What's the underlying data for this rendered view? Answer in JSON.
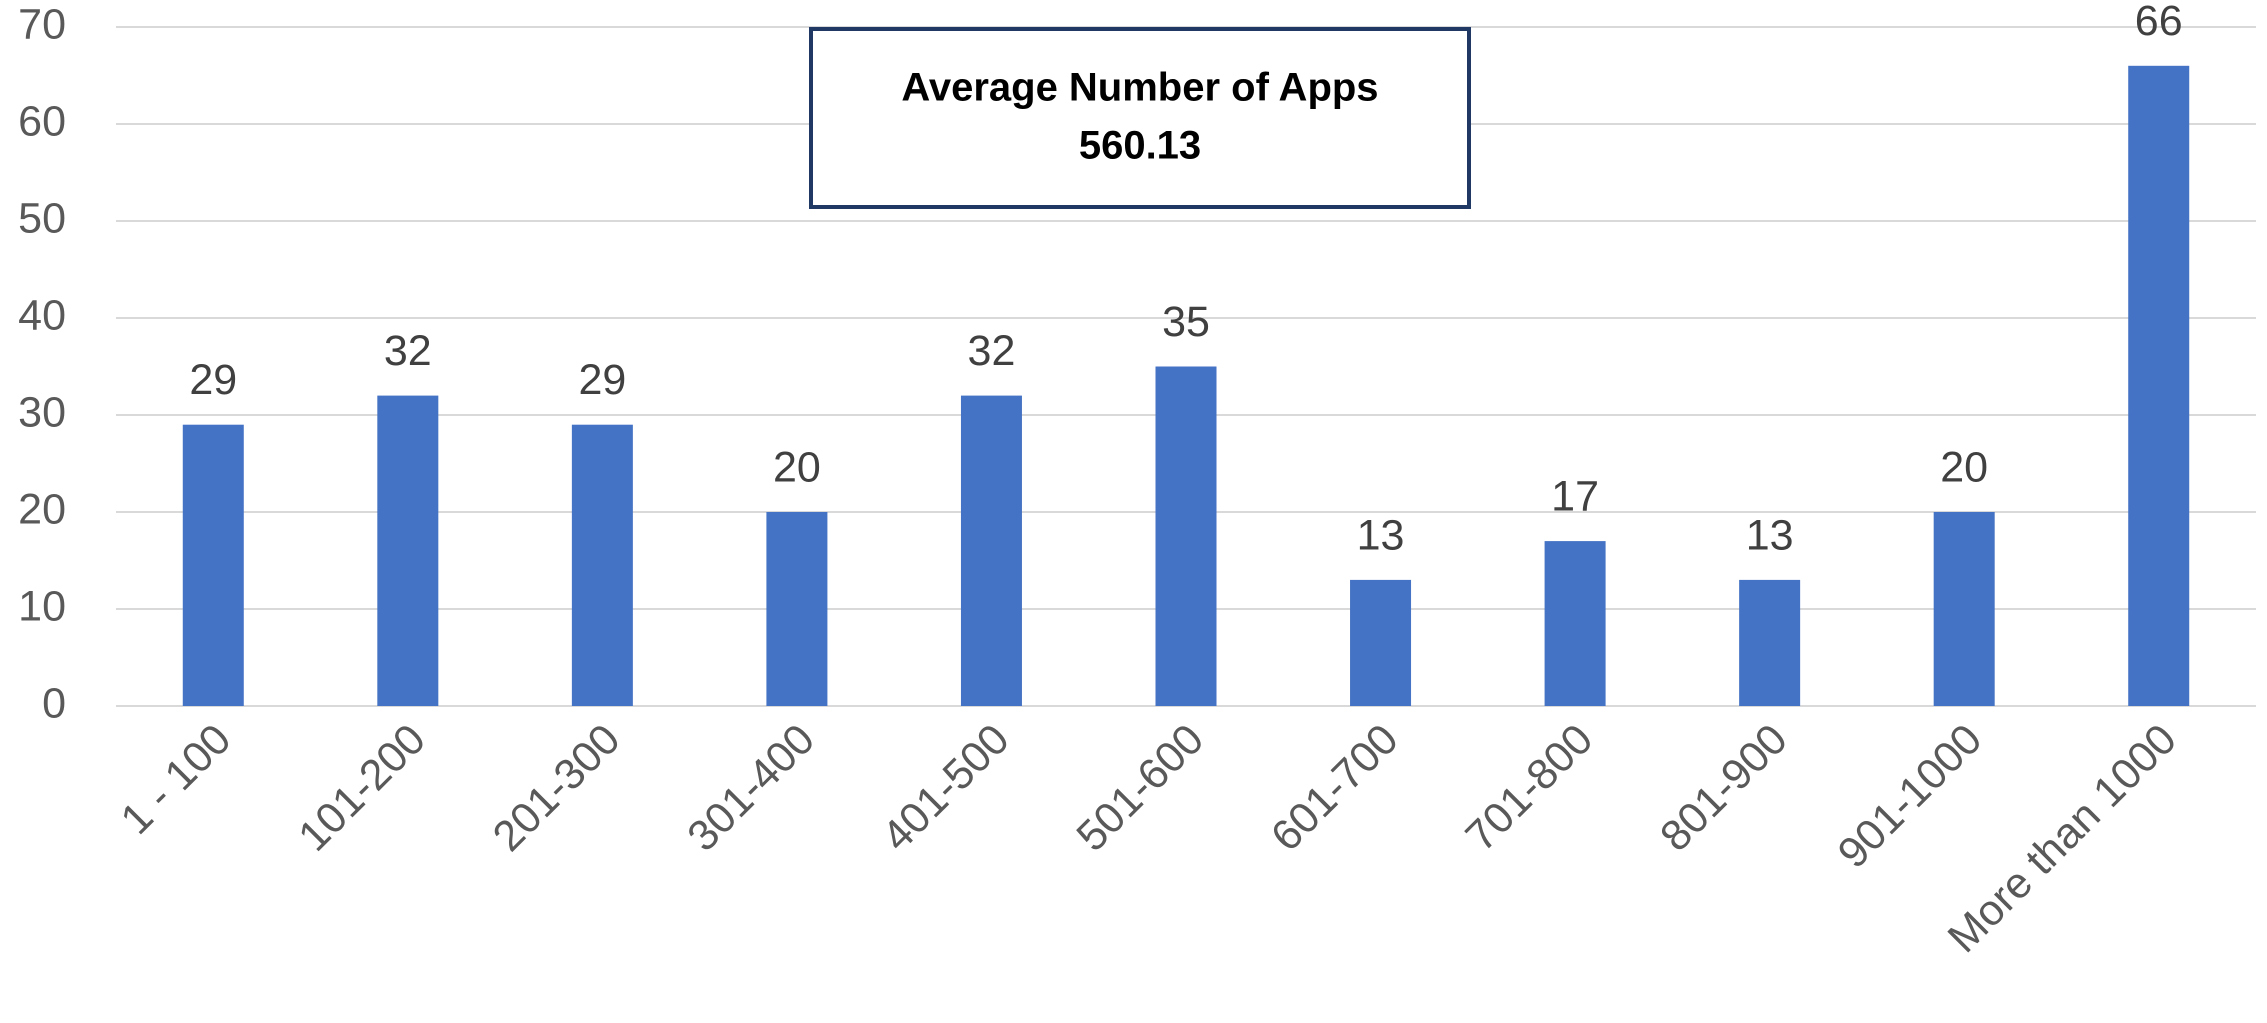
{
  "chart_data": {
    "type": "bar",
    "categories": [
      "1 - 100",
      "101-200",
      "201-300",
      "301-400",
      "401-500",
      "501-600",
      "601-700",
      "701-800",
      "801-900",
      "901-1000",
      "More than 1000"
    ],
    "values": [
      29,
      32,
      29,
      20,
      32,
      35,
      13,
      17,
      13,
      20,
      66
    ],
    "color": "#4472c4",
    "ylim": [
      0,
      70
    ],
    "yticks": [
      0,
      10,
      20,
      30,
      40,
      50,
      60,
      70
    ],
    "grid": true,
    "annotation": {
      "title": "Average Number of Apps",
      "value": 560.13
    }
  }
}
